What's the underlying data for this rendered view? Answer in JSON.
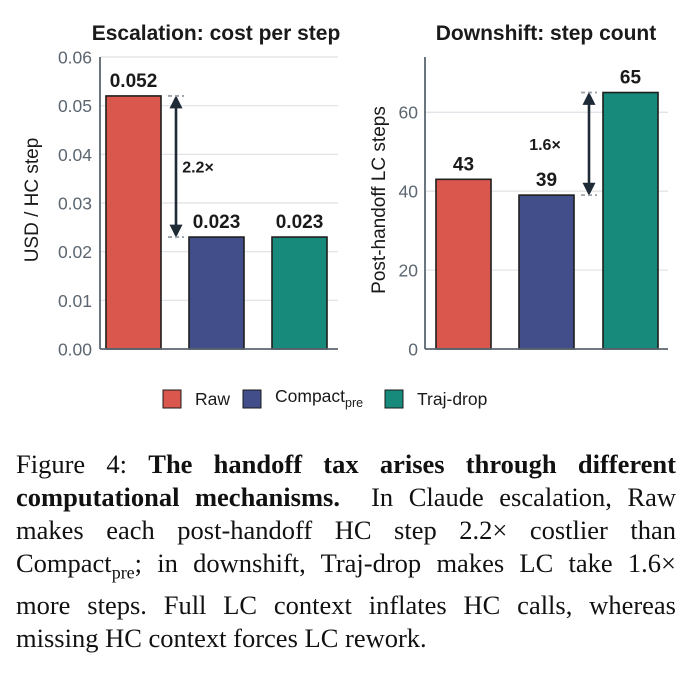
{
  "chart_data": [
    {
      "type": "bar",
      "title": "Escalation: cost per step",
      "xlabel": "",
      "ylabel": "USD / HC step",
      "categories": [
        "Raw",
        "Compact_pre",
        "Traj-drop"
      ],
      "values": [
        0.052,
        0.023,
        0.023
      ],
      "value_labels": [
        "0.052",
        "0.023",
        "0.023"
      ],
      "ylim": [
        0,
        0.06
      ],
      "yticks": [
        0,
        0.01,
        0.02,
        0.03,
        0.04,
        0.05,
        0.06
      ],
      "ytick_labels": [
        "0.00",
        "0.01",
        "0.02",
        "0.03",
        "0.04",
        "0.05",
        "0.06"
      ],
      "grid": true,
      "annotation": {
        "text": "2.2×",
        "from_index": 0,
        "to_index": 1
      }
    },
    {
      "type": "bar",
      "title": "Downshift: step count",
      "xlabel": "",
      "ylabel": "Post-handoff LC steps",
      "categories": [
        "Raw",
        "Compact_pre",
        "Traj-drop"
      ],
      "values": [
        43,
        39,
        65
      ],
      "value_labels": [
        "43",
        "39",
        "65"
      ],
      "ylim": [
        0,
        74
      ],
      "yticks": [
        0,
        20,
        40,
        60
      ],
      "ytick_labels": [
        "0",
        "20",
        "40",
        "60"
      ],
      "grid": true,
      "annotation": {
        "text": "1.6×",
        "from_index": 1,
        "to_index": 2
      }
    }
  ],
  "legend": {
    "placement": "bottom",
    "items": [
      {
        "main": "Raw",
        "sub": "",
        "color": "#d9574c"
      },
      {
        "main": "Compact",
        "sub": "pre",
        "color": "#414e8a"
      },
      {
        "main": "Traj-drop",
        "sub": "",
        "color": "#178a7b"
      }
    ]
  },
  "colors": {
    "bars": [
      "#d9574c",
      "#414e8a",
      "#178a7b"
    ],
    "axis": "#5b6670",
    "grid": "#dde1e4",
    "text": "#1a1a1a",
    "annotation": "#1f2a37"
  },
  "caption": {
    "label": "Figure 4:",
    "bold": "The handoff tax arises through different computational mechanisms.",
    "seg1": "In Claude escalation, Raw makes each post-handoff HC step 2.2× costlier than Compact",
    "sub": "pre",
    "seg2": "; in downshift, Traj-drop makes LC take 1.6× more steps. Full LC context inflates HC calls, whereas missing HC context forces LC rework."
  }
}
